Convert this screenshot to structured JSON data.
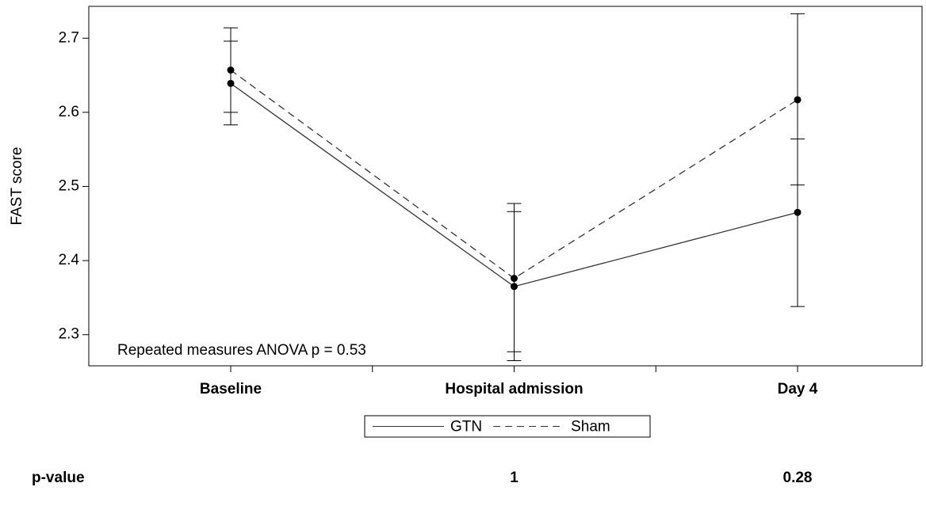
{
  "chart_data": {
    "type": "line",
    "y_label": "FAST score",
    "annotation": "Repeated measures ANOVA p = 0.53",
    "categories": [
      "Baseline",
      "Hospital admission",
      "Day 4"
    ],
    "series": [
      {
        "name": "GTN",
        "color": "#333333",
        "dash": "solid",
        "values": [
          2.639,
          2.365,
          2.465
        ],
        "lower": [
          2.583,
          2.265,
          2.338
        ],
        "upper": [
          2.696,
          2.466,
          2.564
        ]
      },
      {
        "name": "Sham",
        "color": "#333333",
        "dash": "dashed",
        "values": [
          2.657,
          2.376,
          2.617
        ],
        "lower": [
          2.6,
          2.277,
          2.502
        ],
        "upper": [
          2.714,
          2.477,
          2.733
        ]
      }
    ],
    "ylim": [
      2.258,
      2.743
    ],
    "yticks": [
      2.3,
      2.4,
      2.5,
      2.6,
      2.7
    ],
    "p_label": "p-value",
    "p_values": [
      null,
      1,
      0.28
    ]
  }
}
